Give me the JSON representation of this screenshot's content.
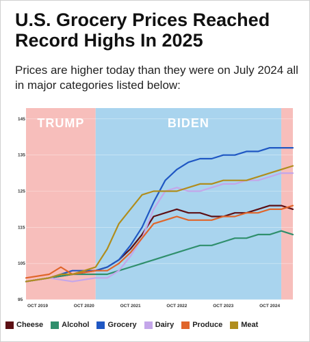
{
  "title": "U.S. Grocery Prices Reached Record Highs In 2025",
  "subtitle": "Prices are higher today than they were on July 2024 all in major categories listed below:",
  "chart_data": {
    "type": "line",
    "x_ticks": [
      "OCT 2019",
      "OCT 2020",
      "OCT 2021",
      "OCT 2022",
      "OCT 2023",
      "OCT 2024"
    ],
    "y_ticks": [
      95,
      105,
      115,
      125,
      135,
      145
    ],
    "ylim": [
      95,
      148
    ],
    "xlim": [
      "2019-07",
      "2025-04"
    ],
    "grid": true,
    "legend_position": "bottom",
    "regions": [
      {
        "label": "TRUMP",
        "start": "2019-07",
        "end": "2021-01",
        "color": "#f7bebb"
      },
      {
        "label": "BIDEN",
        "start": "2021-01",
        "end": "2025-01",
        "color": "#a9d4ee"
      },
      {
        "label": "",
        "start": "2025-01",
        "end": "2025-04",
        "color": "#f7bebb"
      }
    ],
    "series": [
      {
        "name": "Cheese",
        "color": "#5c0f14",
        "points": [
          [
            "2019-07",
            100
          ],
          [
            "2020-01",
            101
          ],
          [
            "2020-07",
            102
          ],
          [
            "2021-01",
            103
          ],
          [
            "2021-04",
            104
          ],
          [
            "2021-07",
            106
          ],
          [
            "2021-10",
            109
          ],
          [
            "2022-01",
            113
          ],
          [
            "2022-04",
            118
          ],
          [
            "2022-07",
            119
          ],
          [
            "2022-10",
            120
          ],
          [
            "2023-01",
            119
          ],
          [
            "2023-04",
            119
          ],
          [
            "2023-07",
            118
          ],
          [
            "2023-10",
            118
          ],
          [
            "2024-01",
            119
          ],
          [
            "2024-04",
            119
          ],
          [
            "2024-07",
            120
          ],
          [
            "2024-10",
            121
          ],
          [
            "2025-01",
            121
          ],
          [
            "2025-04",
            120
          ]
        ]
      },
      {
        "name": "Alcohol",
        "color": "#2f8f6c",
        "points": [
          [
            "2019-07",
            100
          ],
          [
            "2020-01",
            101
          ],
          [
            "2020-07",
            102
          ],
          [
            "2021-01",
            102
          ],
          [
            "2021-04",
            102
          ],
          [
            "2021-07",
            103
          ],
          [
            "2021-10",
            104
          ],
          [
            "2022-01",
            105
          ],
          [
            "2022-04",
            106
          ],
          [
            "2022-07",
            107
          ],
          [
            "2022-10",
            108
          ],
          [
            "2023-01",
            109
          ],
          [
            "2023-04",
            110
          ],
          [
            "2023-07",
            110
          ],
          [
            "2023-10",
            111
          ],
          [
            "2024-01",
            112
          ],
          [
            "2024-04",
            112
          ],
          [
            "2024-07",
            113
          ],
          [
            "2024-10",
            113
          ],
          [
            "2025-01",
            114
          ],
          [
            "2025-04",
            113
          ]
        ]
      },
      {
        "name": "Grocery",
        "color": "#1f57c3",
        "points": [
          [
            "2019-07",
            100
          ],
          [
            "2020-01",
            101
          ],
          [
            "2020-07",
            103
          ],
          [
            "2021-01",
            103
          ],
          [
            "2021-04",
            104
          ],
          [
            "2021-07",
            106
          ],
          [
            "2021-10",
            110
          ],
          [
            "2022-01",
            115
          ],
          [
            "2022-04",
            122
          ],
          [
            "2022-07",
            128
          ],
          [
            "2022-10",
            131
          ],
          [
            "2023-01",
            133
          ],
          [
            "2023-04",
            134
          ],
          [
            "2023-07",
            134
          ],
          [
            "2023-10",
            135
          ],
          [
            "2024-01",
            135
          ],
          [
            "2024-04",
            136
          ],
          [
            "2024-07",
            136
          ],
          [
            "2024-10",
            137
          ],
          [
            "2025-01",
            137
          ],
          [
            "2025-04",
            137
          ]
        ]
      },
      {
        "name": "Dairy",
        "color": "#c4a6ea",
        "points": [
          [
            "2019-07",
            100
          ],
          [
            "2020-01",
            101
          ],
          [
            "2020-07",
            100
          ],
          [
            "2021-01",
            101
          ],
          [
            "2021-04",
            101
          ],
          [
            "2021-07",
            103
          ],
          [
            "2021-10",
            107
          ],
          [
            "2022-01",
            112
          ],
          [
            "2022-04",
            120
          ],
          [
            "2022-07",
            125
          ],
          [
            "2022-10",
            126
          ],
          [
            "2023-01",
            125
          ],
          [
            "2023-04",
            125
          ],
          [
            "2023-07",
            126
          ],
          [
            "2023-10",
            127
          ],
          [
            "2024-01",
            127
          ],
          [
            "2024-04",
            128
          ],
          [
            "2024-07",
            128
          ],
          [
            "2024-10",
            129
          ],
          [
            "2025-01",
            130
          ],
          [
            "2025-04",
            130
          ]
        ]
      },
      {
        "name": "Produce",
        "color": "#e0652a",
        "points": [
          [
            "2019-07",
            101
          ],
          [
            "2020-01",
            102
          ],
          [
            "2020-04",
            104
          ],
          [
            "2020-07",
            102
          ],
          [
            "2021-01",
            103
          ],
          [
            "2021-04",
            103
          ],
          [
            "2021-07",
            105
          ],
          [
            "2021-10",
            108
          ],
          [
            "2022-01",
            112
          ],
          [
            "2022-04",
            116
          ],
          [
            "2022-07",
            117
          ],
          [
            "2022-10",
            118
          ],
          [
            "2023-01",
            117
          ],
          [
            "2023-04",
            117
          ],
          [
            "2023-07",
            117
          ],
          [
            "2023-10",
            118
          ],
          [
            "2024-01",
            118
          ],
          [
            "2024-04",
            119
          ],
          [
            "2024-07",
            119
          ],
          [
            "2024-10",
            120
          ],
          [
            "2025-01",
            120
          ],
          [
            "2025-04",
            121
          ]
        ]
      },
      {
        "name": "Meat",
        "color": "#b08d1c",
        "points": [
          [
            "2019-07",
            100
          ],
          [
            "2020-01",
            101
          ],
          [
            "2020-04",
            102
          ],
          [
            "2020-07",
            102
          ],
          [
            "2021-01",
            104
          ],
          [
            "2021-04",
            109
          ],
          [
            "2021-07",
            116
          ],
          [
            "2021-10",
            120
          ],
          [
            "2022-01",
            124
          ],
          [
            "2022-04",
            125
          ],
          [
            "2022-07",
            125
          ],
          [
            "2022-10",
            125
          ],
          [
            "2023-01",
            126
          ],
          [
            "2023-04",
            127
          ],
          [
            "2023-07",
            127
          ],
          [
            "2023-10",
            128
          ],
          [
            "2024-01",
            128
          ],
          [
            "2024-04",
            128
          ],
          [
            "2024-07",
            129
          ],
          [
            "2024-10",
            130
          ],
          [
            "2025-01",
            131
          ],
          [
            "2025-04",
            132
          ]
        ]
      }
    ]
  }
}
